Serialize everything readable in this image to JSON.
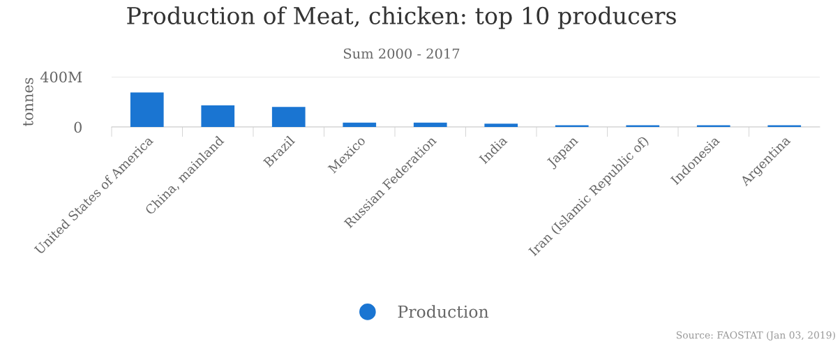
{
  "chart_data": {
    "type": "bar",
    "title": "Production of Meat, chicken: top 10 producers",
    "subtitle": "Sum 2000 - 2017",
    "ylabel": "tonnes",
    "categories": [
      "United States of America",
      "China, mainland",
      "Brazil",
      "Mexico",
      "Russian Federation",
      "India",
      "Japan",
      "Iran (Islamic Republic of)",
      "Indonesia",
      "Argentina"
    ],
    "series": [
      {
        "name": "Production",
        "color": "#1a75d2",
        "values": [
          275,
          172,
          160,
          35,
          35,
          26,
          14,
          14,
          14,
          14
        ]
      }
    ],
    "ylim": [
      0,
      400
    ],
    "yticks": [
      {
        "value": 0,
        "label": "0"
      },
      {
        "value": 400,
        "label": "400M"
      }
    ],
    "grid": "y",
    "legend": "bottom",
    "marker": "circle",
    "annotations": [
      "Source: FAOSTAT (Jan 03, 2019)"
    ]
  }
}
